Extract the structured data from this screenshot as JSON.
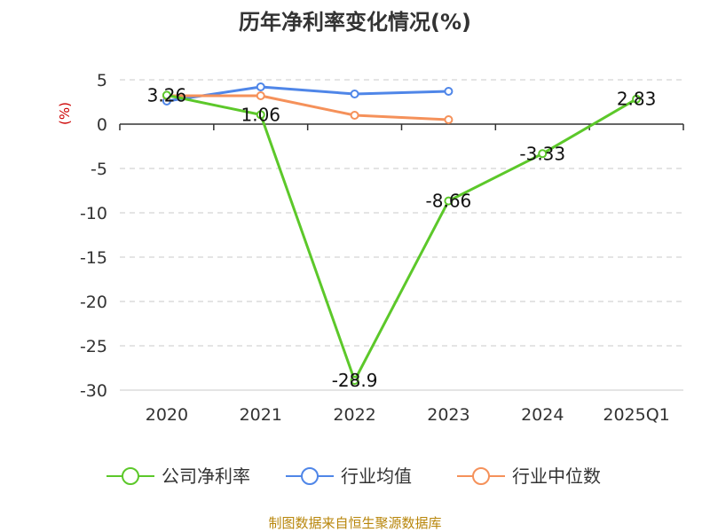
{
  "chart_data": {
    "type": "line",
    "title": "历年净利率变化情况(%)",
    "ylabel": "(%)",
    "xlabel": "",
    "categories": [
      "2020",
      "2021",
      "2022",
      "2023",
      "2024",
      "2025Q1"
    ],
    "ylim": [
      -30,
      5
    ],
    "yticks": [
      5,
      0,
      -5,
      -10,
      -15,
      -20,
      -25,
      -30
    ],
    "grid": true,
    "legend_position": "bottom",
    "series": [
      {
        "name": "公司净利率",
        "color": "#5cc82a",
        "values": [
          3.26,
          1.06,
          -28.9,
          -8.66,
          -3.33,
          2.83
        ],
        "labels": [
          "3.26",
          "1.06",
          "-28.9",
          "-8.66",
          "-3.33",
          "2.83"
        ]
      },
      {
        "name": "行业均值",
        "color": "#4f86e8",
        "values": [
          2.6,
          4.2,
          3.4,
          3.7,
          null,
          null
        ]
      },
      {
        "name": "行业中位数",
        "color": "#f5915a",
        "values": [
          3.2,
          3.2,
          1.0,
          0.5,
          null,
          null
        ]
      }
    ]
  },
  "footer": {
    "source": "制图数据来自恒生聚源数据库"
  }
}
